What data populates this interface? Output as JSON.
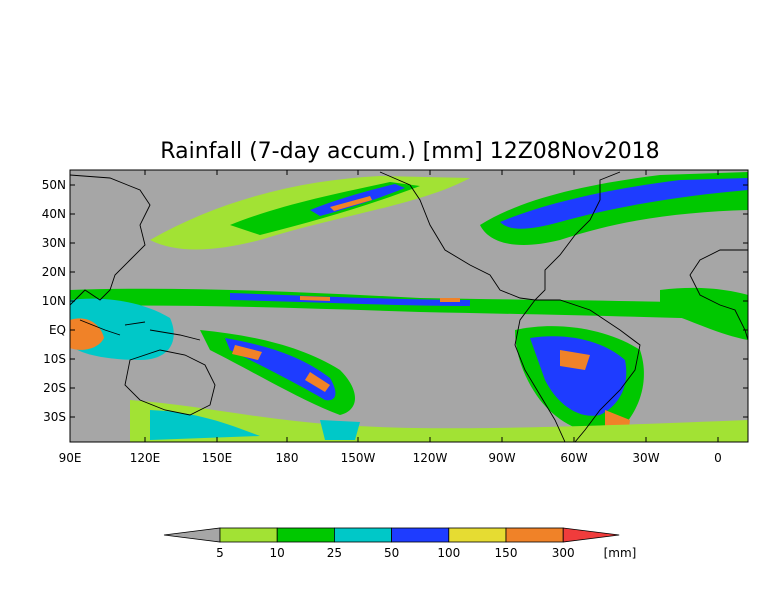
{
  "title": "Rainfall (7-day accum.) [mm] 12Z08Nov2018",
  "map": {
    "lon_labels": [
      "90E",
      "120E",
      "150E",
      "180",
      "150W",
      "120W",
      "90W",
      "60W",
      "30W",
      "0"
    ],
    "lat_labels": [
      "50N",
      "40N",
      "30N",
      "20N",
      "10N",
      "EQ",
      "10S",
      "20S",
      "30S"
    ],
    "background_color": "#a6a6a6",
    "coastline_color": "#000000"
  },
  "colorbar": {
    "tick_labels": [
      "5",
      "10",
      "25",
      "50",
      "100",
      "150",
      "300"
    ],
    "unit": "[mm]",
    "bins": [
      {
        "color": "#a6a6a6"
      },
      {
        "color": "#a2e234"
      },
      {
        "color": "#00c800"
      },
      {
        "color": "#00c8c8"
      },
      {
        "color": "#1e3cff"
      },
      {
        "color": "#e6dc32"
      },
      {
        "color": "#f08228"
      },
      {
        "color": "#f03c3c"
      }
    ]
  }
}
